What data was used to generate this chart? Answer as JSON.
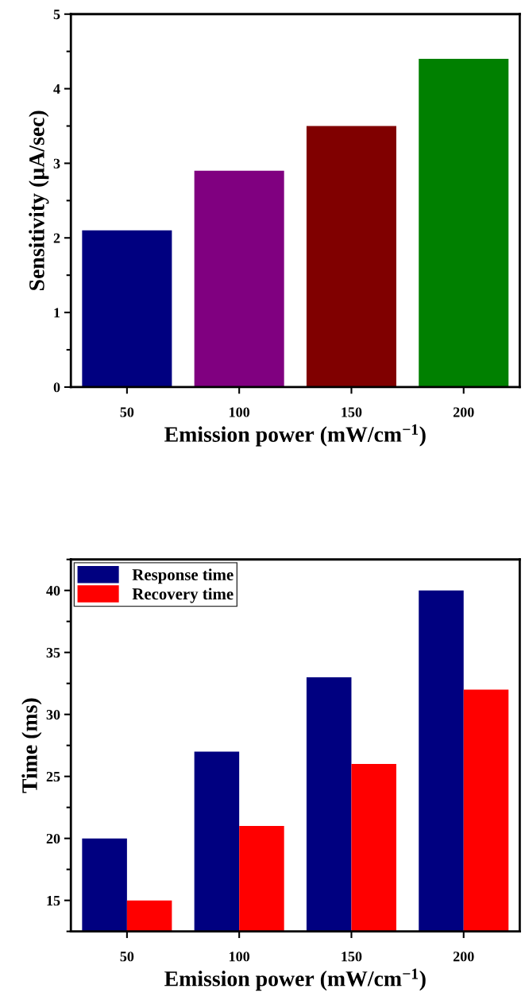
{
  "chart_data": [
    {
      "type": "bar",
      "xlabel": "Emission power (mW/cm$^{−1}$)",
      "ylabel": "Sensitivity (µA/sec)",
      "categories": [
        "50",
        "100",
        "150",
        "200"
      ],
      "values": [
        2.1,
        2.9,
        3.5,
        4.4
      ],
      "colors": [
        "#000080",
        "#800080",
        "#800000",
        "#008000"
      ],
      "ylim": [
        0,
        5
      ],
      "yticks": [
        0,
        1,
        2,
        3,
        4,
        5
      ],
      "grid": false,
      "legend": false
    },
    {
      "type": "bar",
      "xlabel": "Emission power (mW/cm$^{−1}$)",
      "ylabel": "Time (ms)",
      "categories": [
        "50",
        "100",
        "150",
        "200"
      ],
      "series": [
        {
          "name": "Response time",
          "color": "#000080",
          "values": [
            20,
            27,
            33,
            40
          ]
        },
        {
          "name": "Recovery time",
          "color": "#ff0000",
          "values": [
            15,
            21,
            26,
            32
          ]
        }
      ],
      "ylim": [
        12.5,
        42.5
      ],
      "yticks": [
        15,
        20,
        25,
        30,
        35,
        40
      ],
      "grid": false,
      "legend": "top left"
    }
  ]
}
